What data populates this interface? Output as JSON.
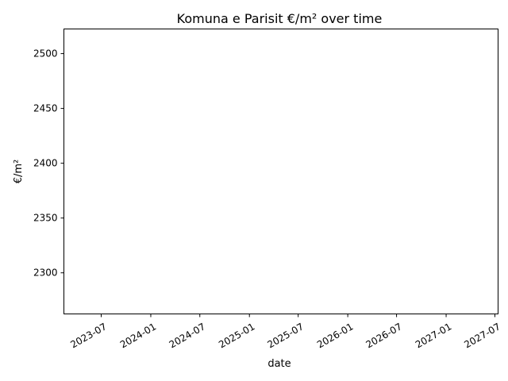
{
  "chart_data": {
    "type": "line",
    "title": "Komuna e Parisit €/m² over time",
    "xlabel": "date",
    "ylabel": "€/m²",
    "x_axis_type": "date",
    "x_ticks": [
      "2023-07",
      "2024-01",
      "2024-07",
      "2025-01",
      "2025-07",
      "2026-01",
      "2026-07",
      "2027-01",
      "2027-07"
    ],
    "y_ticks": [
      2300,
      2350,
      2400,
      2450,
      2500
    ],
    "ylim": [
      2262.5,
      2522.5
    ],
    "series": [],
    "grid": false,
    "legend": "none"
  }
}
